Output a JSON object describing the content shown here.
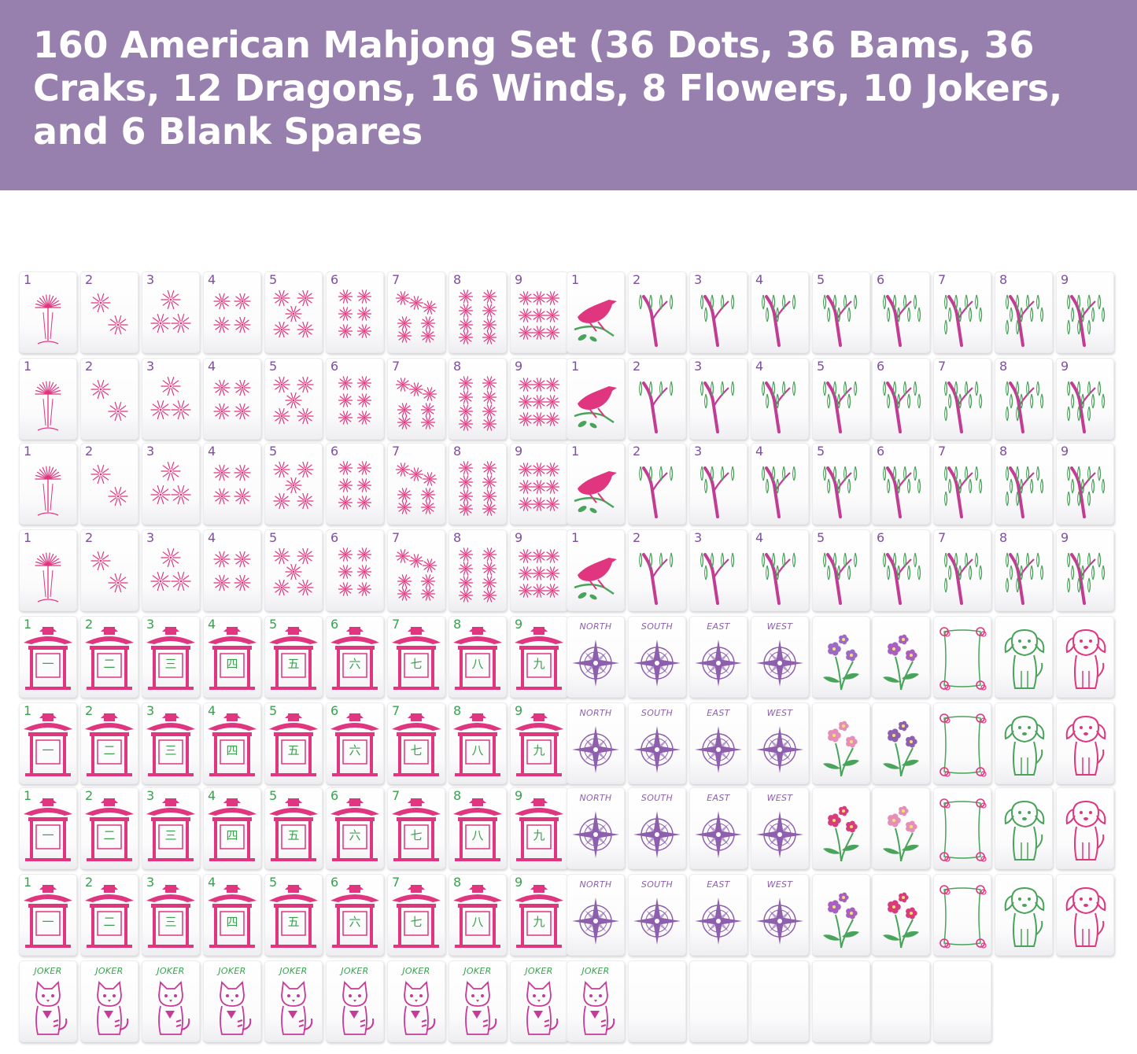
{
  "banner": {
    "title": "160 American Mahjong Set (36 Dots, 36 Bams, 36 Craks, 12 Dragons, 16 Winds, 8 Flowers, 10 Jokers, and 6 Blank Spares"
  },
  "colors": {
    "banner": "#977fae",
    "dots": "#e0357f",
    "crak_frame": "#e0357f",
    "crak_char": "#3aa14f",
    "bam_leaf": "#4aa35a",
    "bam_trunk": "#c23c94",
    "winds": "#8d5fad",
    "joker_text": "#3aa14f",
    "joker_cat": "#c83a9a"
  },
  "suits": {
    "dots": {
      "numbers": [
        "1",
        "2",
        "3",
        "4",
        "5",
        "6",
        "7",
        "8",
        "9"
      ],
      "icon": "firework-dot-icon"
    },
    "bams": {
      "numbers": [
        "1",
        "2",
        "3",
        "4",
        "5",
        "6",
        "7",
        "8",
        "9"
      ],
      "icon": "willow-tree-icon",
      "one_icon": "bird-icon"
    },
    "craks": {
      "numbers": [
        "1",
        "2",
        "3",
        "4",
        "5",
        "6",
        "7",
        "8",
        "9"
      ],
      "chars": [
        "一",
        "二",
        "三",
        "四",
        "五",
        "六",
        "七",
        "八",
        "九"
      ],
      "icon": "pagoda-icon"
    }
  },
  "winds": {
    "labels": [
      "NORTH",
      "SOUTH",
      "EAST",
      "WEST"
    ],
    "icon": "compass-icon"
  },
  "flowers": {
    "icon": "flower-icon",
    "count": 8
  },
  "dragons": {
    "soap_icon": "soap-frame-icon",
    "dog_icon": "dog-icon"
  },
  "jokers": {
    "label": "JOKER",
    "count": 10,
    "icon": "cat-icon"
  },
  "blanks": {
    "count": 6
  }
}
